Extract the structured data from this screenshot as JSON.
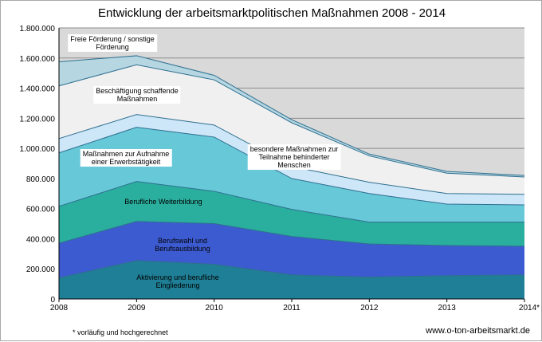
{
  "chart_data": {
    "type": "area",
    "stacked": true,
    "title": "Entwicklung der arbeitsmarktpolitischen Maßnahmen 2008 - 2014",
    "x": [
      "2008",
      "2009",
      "2010",
      "2011",
      "2012",
      "2013",
      "2014*"
    ],
    "ylim": [
      0,
      1800000
    ],
    "yticks": [
      "0",
      "200.000",
      "400.000",
      "600.000",
      "800.000",
      "1.000.000",
      "1.200.000",
      "1.400.000",
      "1.600.000",
      "1.800.000"
    ],
    "xlabel": "",
    "ylabel": "",
    "grid": true,
    "series": [
      {
        "name": "Aktivierung und berufliche\nEingliederung",
        "color": "#1f7f96",
        "values": [
          140000,
          255000,
          230000,
          160000,
          145000,
          155000,
          160000
        ]
      },
      {
        "name": "Berufswahl und\nBerufsausbildung",
        "color": "#3d5bd1",
        "values": [
          230000,
          260000,
          270000,
          255000,
          220000,
          200000,
          190000
        ]
      },
      {
        "name": "Berufliche Weiterbildung",
        "color": "#2aae9e",
        "values": [
          245000,
          265000,
          215000,
          180000,
          145000,
          155000,
          160000
        ]
      },
      {
        "name": "Maßnahmen zur Aufnahme\neiner Erwerbstätigkeit",
        "color": "#67c8d8",
        "values": [
          355000,
          360000,
          360000,
          205000,
          190000,
          120000,
          115000
        ]
      },
      {
        "name": "besondere Maßnahmen zur\nTeilnahme behinderter\nMenschen",
        "color": "#cde6f8",
        "values": [
          95000,
          85000,
          80000,
          80000,
          75000,
          70000,
          70000
        ]
      },
      {
        "name": "Beschäftigung schaffende\nMaßnahmen",
        "color": "#f0f0f0",
        "values": [
          350000,
          330000,
          300000,
          290000,
          175000,
          135000,
          115000
        ]
      },
      {
        "name": "Freie Förderung / sonstige\nFörderung",
        "color": "#b6d7e2",
        "values": [
          160000,
          60000,
          30000,
          20000,
          12000,
          12000,
          10000
        ]
      }
    ],
    "footnote": "* vorläufig und hochgerechnet",
    "source": "www.o-ton-arbeitsmarkt.de"
  }
}
